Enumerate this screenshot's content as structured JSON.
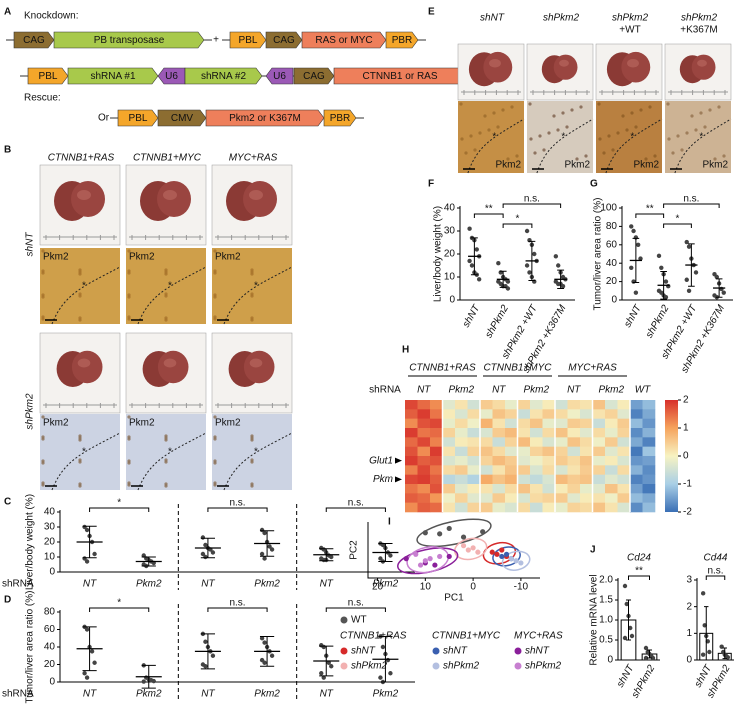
{
  "panel_labels": [
    "A",
    "B",
    "C",
    "D",
    "E",
    "F",
    "G",
    "H",
    "I",
    "J"
  ],
  "panel_a": {
    "knockdown": "Knockdown:",
    "rescue": "Rescue:",
    "plus": "+",
    "or": "Or",
    "construct_1": [
      "CAG",
      "PB transposase"
    ],
    "construct_2": [
      "PBL",
      "CAG",
      "RAS or MYC",
      "PBR"
    ],
    "construct_3": [
      "PBL",
      "shRNA #1",
      "U6",
      "shRNA #2",
      "U6",
      "CAG",
      "CTNNB1 or RAS",
      "PBR"
    ],
    "construct_4": [
      "PBL",
      "CMV",
      "Pkm2 or K367M",
      "PBR"
    ]
  },
  "panel_b": {
    "columns": [
      "CTNNB1+RAS",
      "CTNNB1+MYC",
      "MYC+RAS"
    ],
    "rows": [
      "shNT",
      "shPkm2"
    ],
    "stain": "Pkm2",
    "tumor_mark": "*"
  },
  "panel_e": {
    "columns": [
      [
        "shNT"
      ],
      [
        "shPkm2"
      ],
      [
        "shPkm2",
        "+WT"
      ],
      [
        "shPkm2",
        "+K367M"
      ]
    ],
    "stain": "Pkm2",
    "tumor_mark": "*"
  },
  "chart_data": [
    {
      "type": "dot",
      "ylabel": "Liver/body weight (%)",
      "xlabel": "shRNA",
      "color": "#000000",
      "categories": [
        "NT",
        "Pkm2",
        "NT",
        "Pkm2",
        "NT",
        "Pkm2"
      ],
      "values": [
        20,
        7,
        16,
        19,
        11.5,
        13
      ],
      "errors": [
        10.5,
        3,
        6.5,
        8.5,
        4,
        6
      ],
      "points": [
        [
          30,
          28,
          24,
          20,
          12,
          9,
          7
        ],
        [
          11,
          9,
          8,
          7,
          6,
          5,
          4
        ],
        [
          23,
          18,
          16,
          15,
          13,
          12,
          10
        ],
        [
          28,
          26,
          20,
          17,
          15,
          12,
          9
        ],
        [
          16,
          15,
          13,
          11,
          10,
          9,
          8,
          8
        ],
        [
          19,
          18,
          16,
          13,
          11,
          9,
          7
        ]
      ],
      "ylim": [
        0,
        40
      ],
      "yticks": [
        0,
        10,
        20,
        30,
        40
      ],
      "annotations": [
        "*",
        "n.s.",
        "n.s."
      ]
    },
    {
      "type": "dot",
      "ylabel": "Tumor/liver area ratio (%)",
      "xlabel": "shRNA",
      "color": "#000000",
      "categories": [
        "NT",
        "Pkm2",
        "NT",
        "Pkm2",
        "NT",
        "Pkm2"
      ],
      "values": [
        38,
        6,
        35,
        35,
        24,
        26
      ],
      "errors": [
        25,
        13,
        20,
        17,
        17,
        26
      ],
      "points": [
        [
          63,
          60,
          40,
          35,
          22,
          10,
          5
        ],
        [
          19,
          5,
          3,
          2,
          1,
          0.5
        ],
        [
          55,
          46,
          40,
          35,
          30,
          20,
          18
        ],
        [
          50,
          45,
          40,
          35,
          30,
          25,
          22
        ],
        [
          42,
          40,
          30,
          22,
          18,
          10,
          5
        ],
        [
          52,
          40,
          32,
          25,
          10,
          5,
          0
        ]
      ],
      "ylim": [
        0,
        80
      ],
      "yticks": [
        0,
        20,
        40,
        60,
        80
      ],
      "annotations": [
        "*",
        "n.s.",
        "n.s."
      ]
    },
    {
      "type": "dot",
      "ylabel": "Liver/body weight (%)",
      "color": "#000000",
      "categories": [
        "shNT",
        "shPkm2",
        "shPkm2 +WT",
        "shPkm2 +K367M"
      ],
      "values": [
        19,
        9,
        17,
        9
      ],
      "errors": [
        8,
        3.5,
        8.5,
        4
      ],
      "points": [
        [
          31,
          27,
          26,
          22,
          19,
          17,
          15,
          12,
          11,
          9
        ],
        [
          16,
          12,
          10,
          9,
          8,
          8,
          7,
          6,
          6,
          5
        ],
        [
          30,
          26,
          24,
          20,
          17,
          15,
          12,
          10,
          8
        ],
        [
          19,
          15,
          12,
          10,
          9,
          8,
          7,
          7,
          6
        ]
      ],
      "ylim": [
        0,
        40
      ],
      "yticks": [
        0,
        10,
        20,
        30,
        40
      ],
      "annotations": [
        "**",
        "*",
        "n.s."
      ]
    },
    {
      "type": "dot",
      "ylabel": "Tumor/liver area ratio (%)",
      "color": "#000000",
      "categories": [
        "shNT",
        "shPkm2",
        "shPkm2 +WT",
        "shPkm2 +K367M"
      ],
      "values": [
        43,
        16,
        38,
        13
      ],
      "errors": [
        24,
        15,
        23,
        10
      ],
      "points": [
        [
          80,
          75,
          68,
          60,
          45,
          35,
          20,
          8
        ],
        [
          48,
          35,
          28,
          20,
          15,
          10,
          8,
          5,
          3
        ],
        [
          63,
          58,
          45,
          38,
          30,
          22,
          10
        ],
        [
          28,
          25,
          18,
          12,
          8,
          5,
          3
        ]
      ],
      "ylim": [
        0,
        100
      ],
      "yticks": [
        0,
        20,
        40,
        60,
        80,
        100
      ],
      "annotations": [
        "**",
        "*",
        "n.s."
      ]
    },
    {
      "type": "heatmap",
      "xlabel": "shRNA",
      "group_labels": [
        "CTNNB1+RAS",
        "CTNNB1+MYC",
        "MYC+RAS"
      ],
      "column_labels": [
        "NT",
        "Pkm2",
        "NT",
        "Pkm2",
        "NT",
        "Pkm2",
        "WT"
      ],
      "row_labels": [
        null,
        null,
        null,
        null,
        null,
        null,
        "Glut1",
        null,
        "Pkm",
        null,
        null,
        null
      ],
      "clim": [
        -2,
        2
      ],
      "colorbar_ticks": [
        2,
        1,
        0,
        -1,
        -2
      ],
      "values": [
        [
          1.8,
          1.5,
          1.2,
          -0.3,
          0.2,
          -0.5,
          0.5,
          0.3,
          -0.2,
          0.4,
          -0.3,
          0.1,
          -0.5,
          0.3,
          0.2,
          0.6,
          -0.4,
          0.1,
          -1.5,
          -1.2
        ],
        [
          1.6,
          1.9,
          1.4,
          0.1,
          -0.4,
          0.3,
          -0.2,
          0.6,
          0.4,
          -0.6,
          0.2,
          0.5,
          0.3,
          -0.1,
          -0.4,
          0.2,
          0.4,
          -0.3,
          -1.8,
          -1.4
        ],
        [
          1.2,
          1.7,
          1.8,
          -0.2,
          0.3,
          -0.1,
          0.8,
          0.2,
          -0.5,
          0.3,
          0.6,
          -0.2,
          -0.3,
          0.5,
          0.4,
          -0.6,
          0.1,
          0.5,
          -1.2,
          -1.6
        ],
        [
          1.9,
          1.4,
          1.5,
          0.4,
          -0.2,
          -0.6,
          -0.4,
          0.5,
          0.7,
          0.2,
          -0.5,
          0.3,
          0.6,
          0.1,
          -0.3,
          0.3,
          -0.2,
          0.4,
          -1.7,
          -1.3
        ],
        [
          1.5,
          1.8,
          1.3,
          -0.5,
          0.1,
          0.2,
          0.3,
          -0.6,
          0.4,
          0.7,
          0.1,
          -0.4,
          -0.2,
          0.6,
          0.3,
          -0.1,
          0.5,
          -0.5,
          -1.4,
          -1.8
        ],
        [
          1.7,
          1.2,
          1.9,
          0.2,
          -0.6,
          0.4,
          0.6,
          0.3,
          -0.3,
          -0.2,
          0.4,
          0.6,
          0.4,
          -0.5,
          0.2,
          0.5,
          -0.3,
          0.2,
          -1.9,
          -1.1
        ],
        [
          1.9,
          1.6,
          1.7,
          -0.4,
          -0.2,
          -0.5,
          0.4,
          0.7,
          0.5,
          -0.3,
          -0.1,
          0.2,
          0.5,
          0.3,
          0.6,
          -0.2,
          0.1,
          -0.4,
          -1.6,
          -1.5
        ],
        [
          1.3,
          1.8,
          1.4,
          0.3,
          0.5,
          -0.2,
          -0.5,
          0.2,
          0.6,
          0.5,
          -0.4,
          0.3,
          -0.4,
          0.2,
          0.5,
          0.4,
          -0.6,
          0.3,
          -1.3,
          -1.7
        ],
        [
          1.8,
          1.9,
          1.6,
          -0.8,
          -0.6,
          -0.9,
          0.9,
          0.6,
          0.8,
          -0.5,
          -0.7,
          -0.4,
          0.7,
          0.5,
          0.6,
          -0.6,
          -0.3,
          -0.5,
          -1.8,
          -1.6
        ],
        [
          1.4,
          1.2,
          1.7,
          0.5,
          -0.3,
          0.1,
          0.2,
          -0.4,
          0.3,
          0.6,
          0.2,
          -0.5,
          0.1,
          0.4,
          -0.2,
          -0.3,
          0.6,
          0.2,
          -1.5,
          -1.9
        ],
        [
          1.6,
          1.5,
          1.1,
          -0.1,
          0.4,
          -0.3,
          -0.3,
          0.5,
          0.1,
          -0.4,
          0.3,
          0.4,
          0.5,
          -0.3,
          0.1,
          0.2,
          -0.1,
          0.5,
          -1.2,
          -1.4
        ],
        [
          1.2,
          1.6,
          1.5,
          0.2,
          -0.5,
          0.4,
          0.5,
          -0.2,
          -0.4,
          0.3,
          -0.6,
          0.1,
          -0.2,
          0.4,
          0.3,
          0.6,
          0.2,
          -0.4,
          -1.7,
          -1.2
        ]
      ]
    },
    {
      "type": "scatter",
      "xlabel": "PC1",
      "ylabel": "PC2",
      "xlim": [
        22,
        -14
      ],
      "xticks": [
        20,
        10,
        0,
        -10
      ],
      "ylim": [
        -12,
        14
      ],
      "legend_groups": [
        "CTNNB1+RAS",
        "CTNNB1+MYC",
        "MYC+RAS"
      ],
      "series": [
        {
          "name": "WT",
          "color": "#555555",
          "x": [
            10,
            7,
            2,
            -2,
            5
          ],
          "y": [
            9,
            8.5,
            7,
            9.5,
            11
          ]
        },
        {
          "name": "shNT",
          "color": "#d62a2a",
          "x": [
            -5,
            -6,
            -7,
            -4
          ],
          "y": [
            -1,
            1,
            -2,
            0
          ]
        },
        {
          "name": "shPkm2",
          "color": "#f2b1b1",
          "x": [
            1,
            2,
            -1,
            0
          ],
          "y": [
            1,
            3,
            0,
            2
          ]
        },
        {
          "name": "shNT",
          "color": "#3a5fb0",
          "x": [
            -7,
            -8,
            -6
          ],
          "y": [
            -1,
            -3,
            -2
          ]
        },
        {
          "name": "shPkm2",
          "color": "#b3bfe0",
          "x": [
            -9,
            -8,
            -10
          ],
          "y": [
            -4,
            -3,
            -5
          ]
        },
        {
          "name": "shNT",
          "color": "#8a1f9a",
          "x": [
            14,
            10,
            8,
            5
          ],
          "y": [
            -3,
            -5,
            -6,
            -2
          ]
        },
        {
          "name": "shPkm2",
          "color": "#c77fd0",
          "x": [
            12,
            9,
            7,
            10,
            11
          ],
          "y": [
            -1,
            -3,
            -2,
            -4,
            -6
          ]
        }
      ]
    },
    {
      "type": "bar",
      "title": "Cd24",
      "ylabel": "Relative mRNA level",
      "color": "#000000",
      "bar_color": "#ffffff",
      "categories": [
        "shNT",
        "shPkm2"
      ],
      "values": [
        1.0,
        0.15
      ],
      "errors": [
        0.5,
        0.1
      ],
      "points": [
        [
          1.85,
          1.4,
          1.1,
          0.8,
          0.6,
          0.55
        ],
        [
          0.3,
          0.2,
          0.15,
          0.1,
          0.05,
          0.05
        ]
      ],
      "ylim": [
        0,
        2
      ],
      "yticks": [
        0,
        0.5,
        {
          "value": 1,
          "label": "1.0"
        },
        1.5,
        {
          "value": 2,
          "label": "2.0"
        }
      ],
      "annotations": [
        "**"
      ]
    },
    {
      "type": "bar",
      "title": "Cd44",
      "color": "#000000",
      "bar_color": "#ffffff",
      "categories": [
        "shNT",
        "shPkm2"
      ],
      "values": [
        1.0,
        0.25
      ],
      "errors": [
        1.0,
        0.2
      ],
      "points": [
        [
          2.5,
          1.3,
          0.9,
          0.7,
          0.3,
          0.2
        ],
        [
          0.5,
          0.3,
          0.2,
          0.15,
          0.1
        ]
      ],
      "ylim": [
        0,
        3
      ],
      "yticks": [
        0,
        1,
        2,
        3
      ],
      "annotations": [
        "n.s."
      ]
    }
  ]
}
